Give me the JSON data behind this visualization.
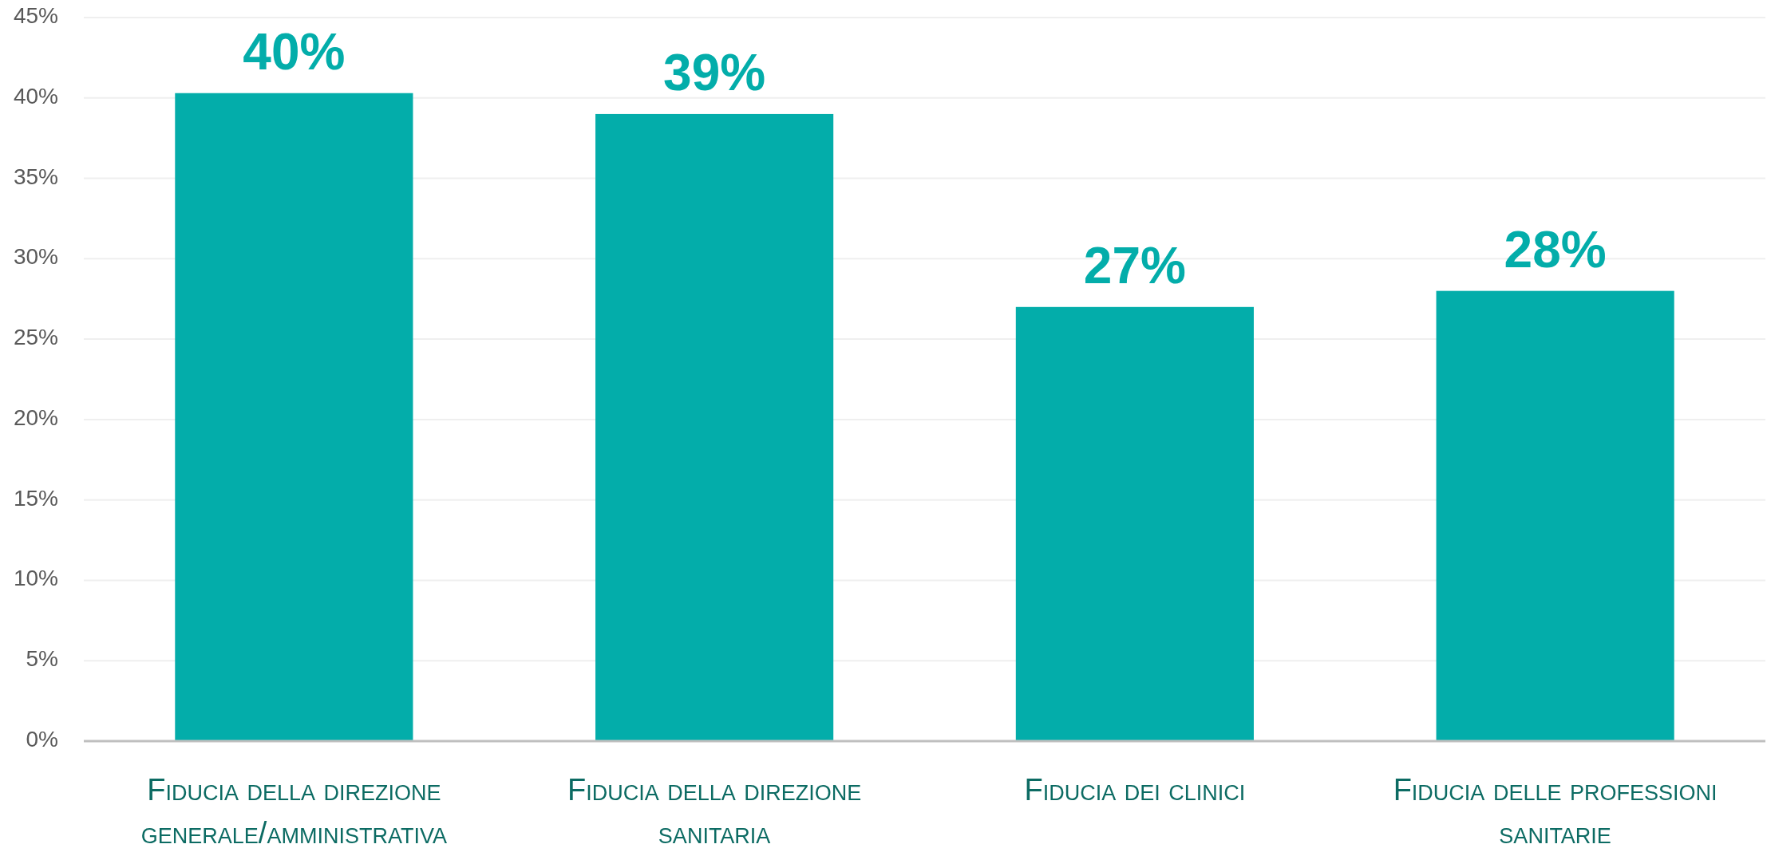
{
  "chart_data": {
    "type": "bar",
    "categories": [
      "Fiducia della direzione generale/amministrativa",
      "Fiducia della direzione sanitaria",
      "Fiducia dei clinici",
      "Fiducia delle professioni sanitarie"
    ],
    "values": [
      40.3,
      39,
      27,
      28
    ],
    "color": "#03adaa",
    "value_labels": [
      "40%",
      "39%",
      "27%",
      "28%"
    ],
    "ylim": [
      0,
      45
    ],
    "yticks": [
      {
        "value": 0,
        "label": "0%"
      },
      {
        "value": 5,
        "label": "5%"
      },
      {
        "value": 10,
        "label": "10%"
      },
      {
        "value": 15,
        "label": "15%"
      },
      {
        "value": 20,
        "label": "20%"
      },
      {
        "value": 25,
        "label": "25%"
      },
      {
        "value": 30,
        "label": "30%"
      },
      {
        "value": 35,
        "label": "35%"
      },
      {
        "value": 40,
        "label": "40%"
      },
      {
        "value": 45,
        "label": "45%"
      }
    ],
    "grid": "y"
  }
}
